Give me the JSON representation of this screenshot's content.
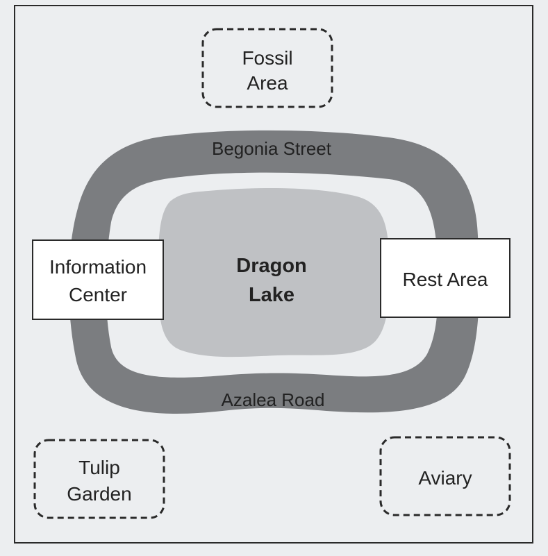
{
  "areas": {
    "fossil": {
      "line1": "Fossil",
      "line2": "Area"
    },
    "tulip": {
      "line1": "Tulip",
      "line2": "Garden"
    },
    "aviary": {
      "label": "Aviary"
    }
  },
  "buildings": {
    "information": {
      "line1": "Information",
      "line2": "Center"
    },
    "rest": {
      "label": "Rest Area"
    }
  },
  "roads": {
    "top": "Begonia Street",
    "bottom": "Azalea Road"
  },
  "lake": {
    "line1": "Dragon",
    "line2": "Lake"
  },
  "colors": {
    "road": "#7b7d80",
    "lake": "#bfc1c4",
    "background": "#eceef0",
    "frame": "#2a2a2a"
  }
}
